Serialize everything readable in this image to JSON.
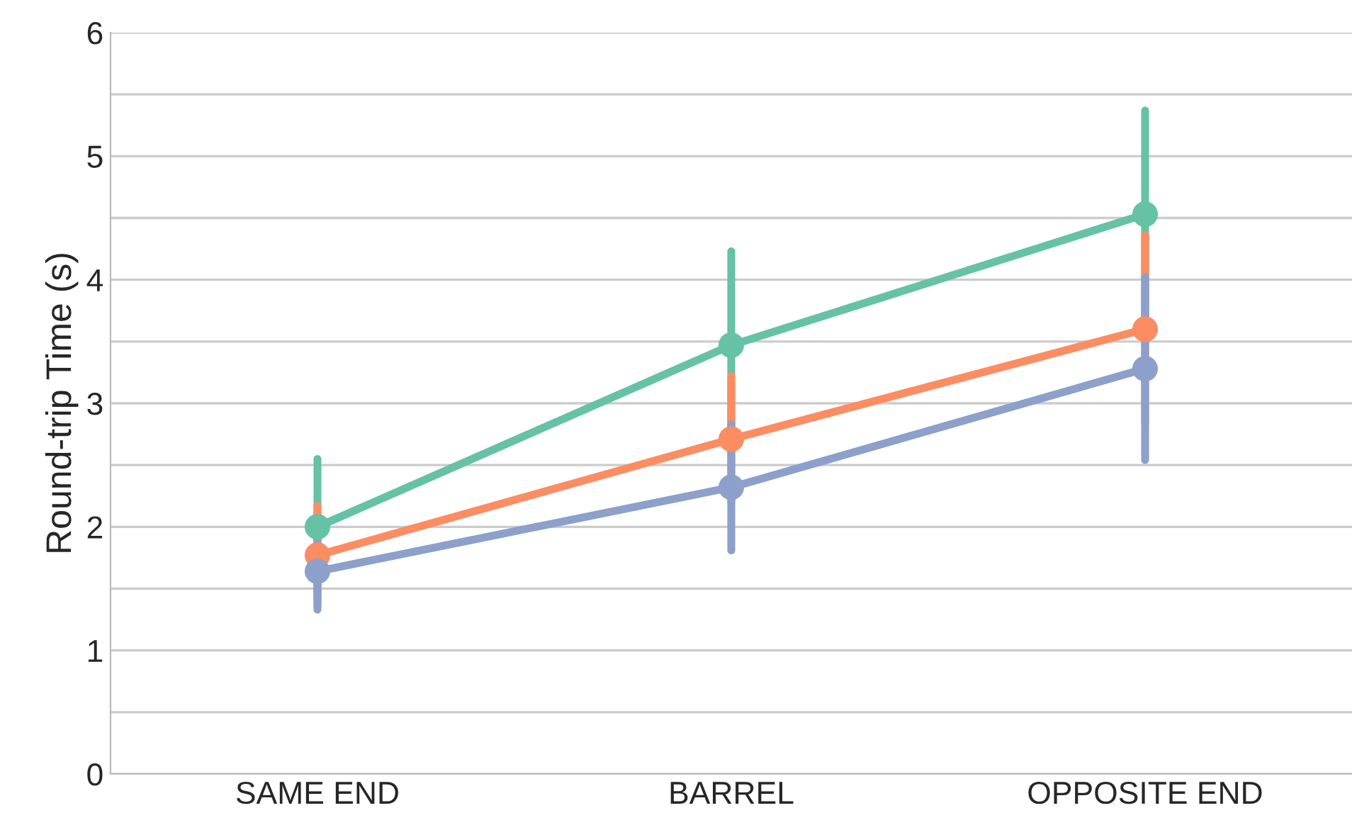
{
  "chart_data": {
    "type": "line",
    "ylabel": "Round-trip Time (s)",
    "categories": [
      "SAME END",
      "BARREL",
      "OPPOSITE END"
    ],
    "series": [
      {
        "color": "#66c2a5",
        "values": [
          2.0,
          3.47,
          4.53
        ],
        "errors": [
          0.55,
          0.76,
          0.84
        ]
      },
      {
        "color": "#fc8d62",
        "values": [
          1.77,
          2.71,
          3.6
        ],
        "errors": [
          0.4,
          0.51,
          0.76
        ]
      },
      {
        "color": "#8da0cb",
        "values": [
          1.64,
          2.32,
          3.28
        ],
        "errors": [
          0.31,
          0.51,
          0.74
        ]
      }
    ],
    "ylim": [
      0,
      6
    ],
    "yticks": [
      0,
      {
        "value": 0.5,
        "label": null
      },
      1,
      {
        "value": 1.5,
        "label": null
      },
      2,
      {
        "value": 2.5,
        "label": null
      },
      3,
      {
        "value": 3.5,
        "label": null
      },
      4,
      {
        "value": 4.5,
        "label": null
      },
      5,
      {
        "value": 5.5,
        "label": null
      },
      6
    ],
    "grid": "y",
    "marker": "circle",
    "line_style": "solid"
  }
}
